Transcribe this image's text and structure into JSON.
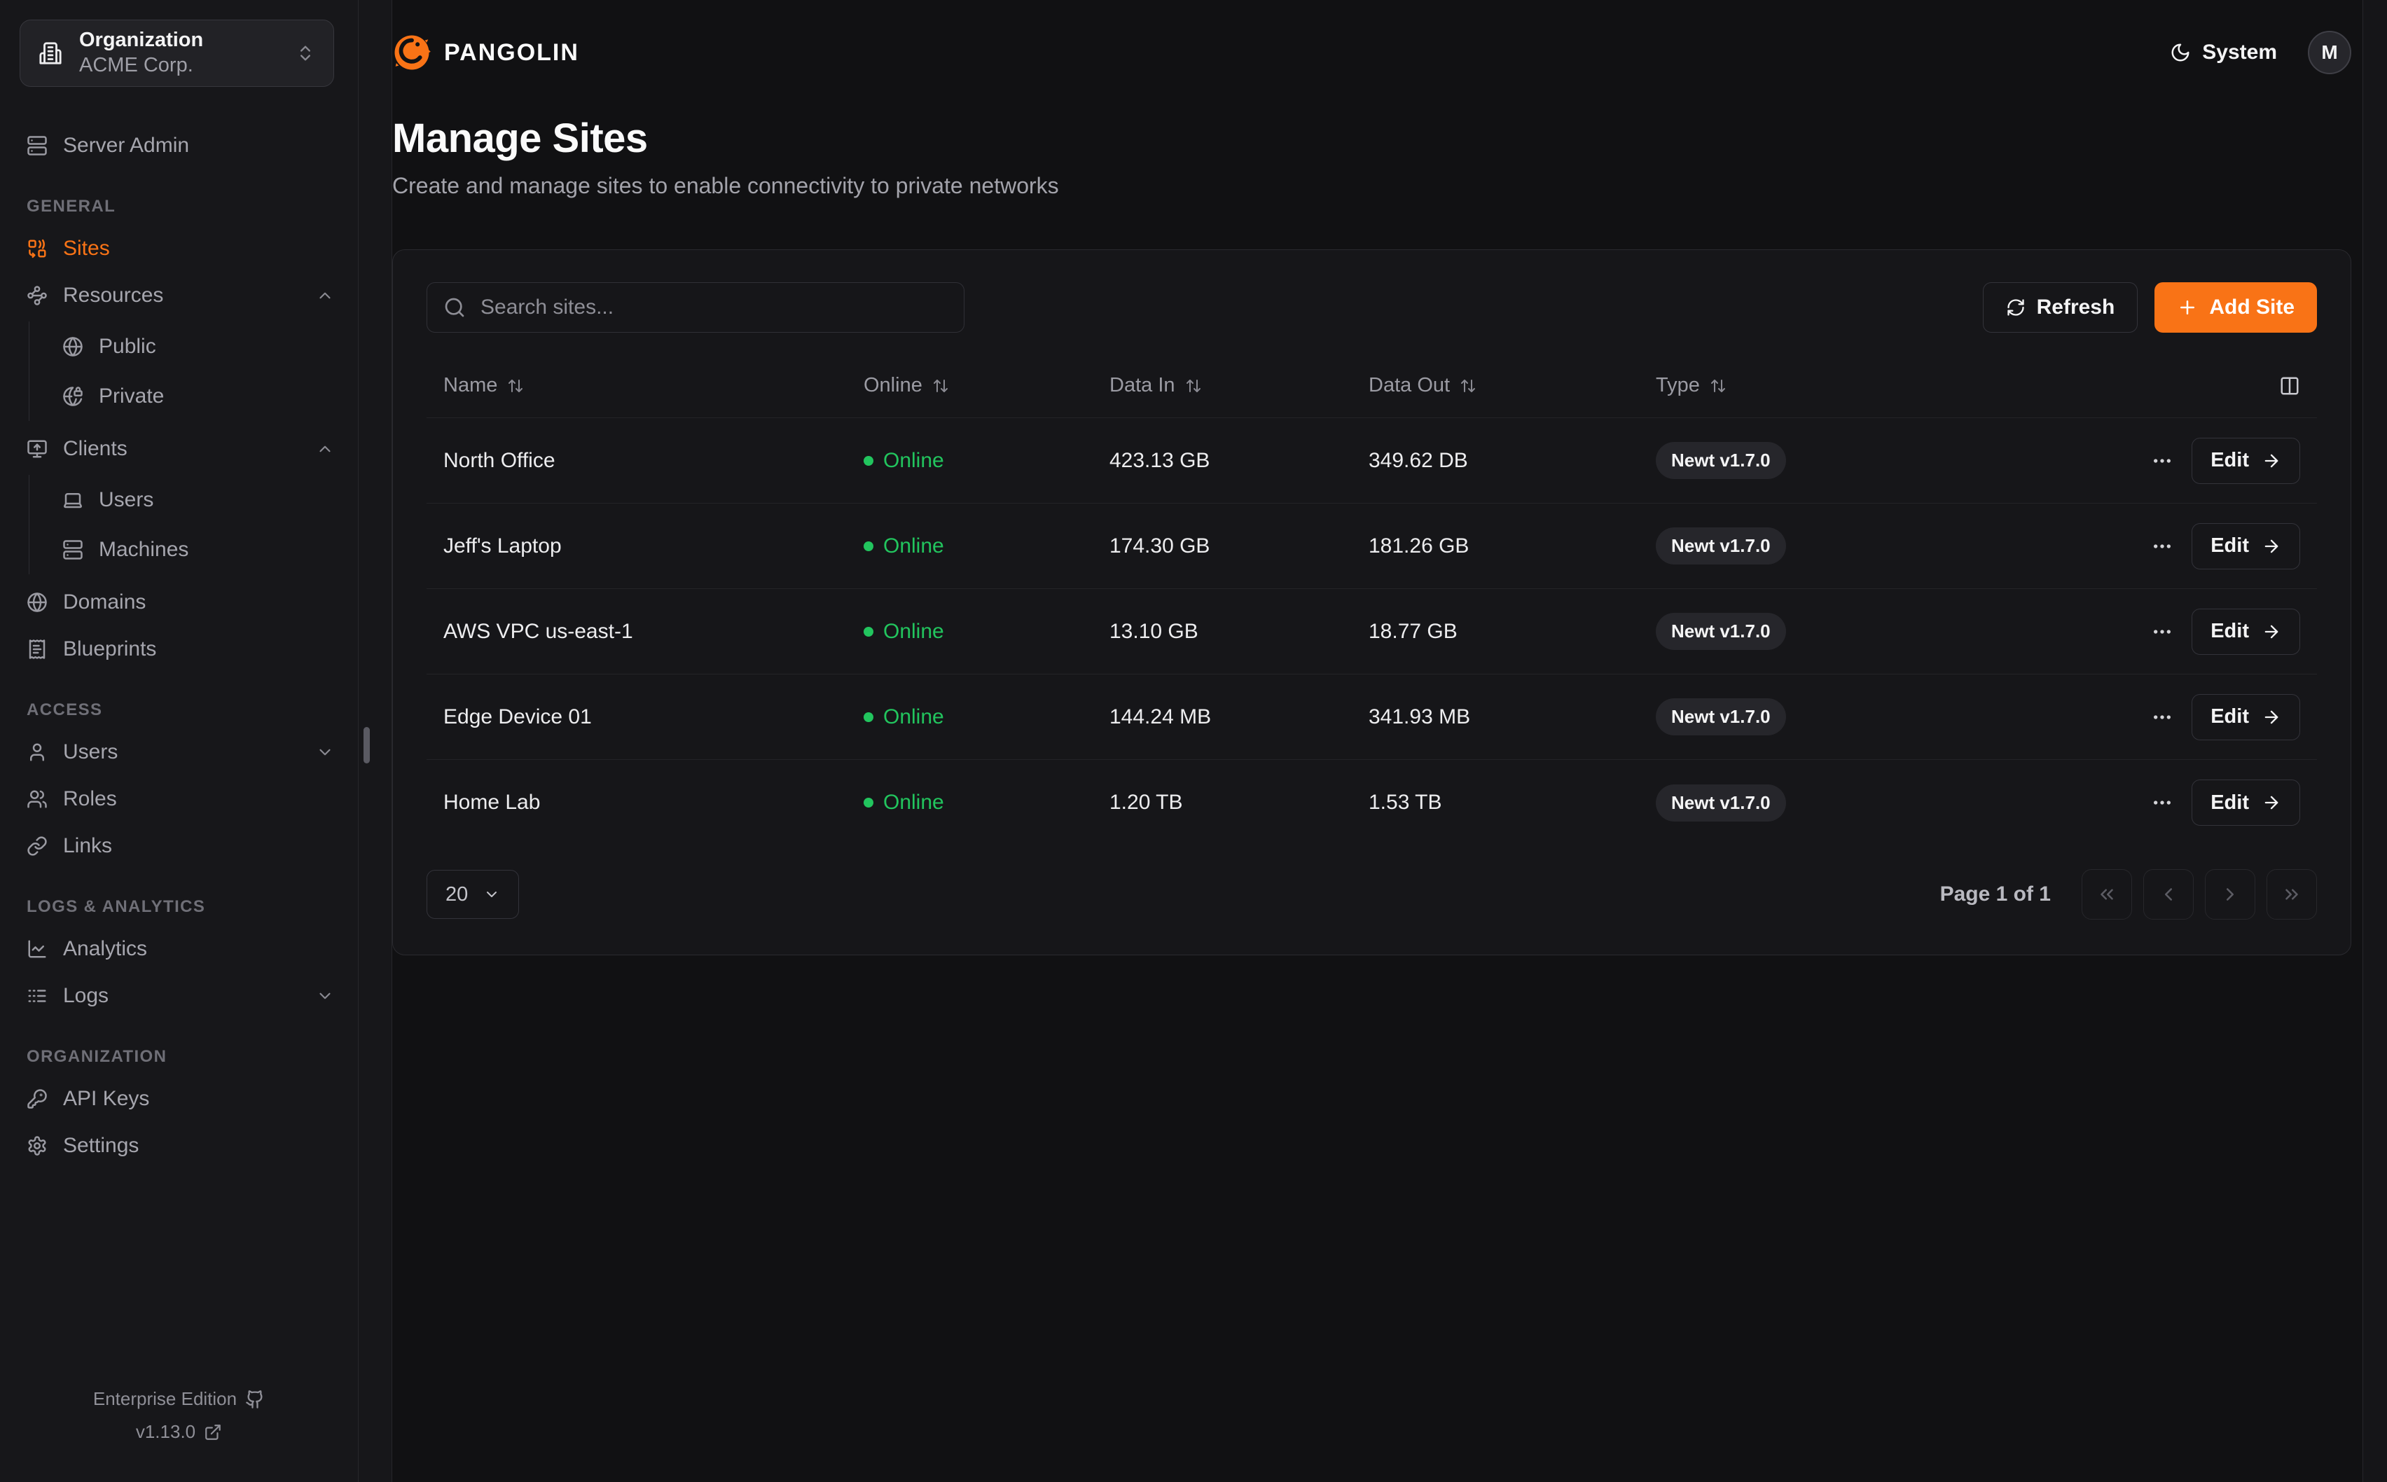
{
  "brand": {
    "name": "PANGOLIN"
  },
  "topbar": {
    "theme_label": "System",
    "avatar_initial": "M"
  },
  "org_selector": {
    "label": "Organization",
    "value": "ACME Corp."
  },
  "sidebar": {
    "server_admin_label": "Server Admin",
    "sections": [
      {
        "label": "GENERAL",
        "items": [
          {
            "label": "Sites",
            "icon": "sites-icon",
            "active": true
          },
          {
            "label": "Resources",
            "icon": "waypoints-icon",
            "chevron": "up",
            "children": [
              {
                "label": "Public",
                "icon": "globe-icon"
              },
              {
                "label": "Private",
                "icon": "globe-lock-icon"
              }
            ]
          },
          {
            "label": "Clients",
            "icon": "monitor-up-icon",
            "chevron": "up",
            "children": [
              {
                "label": "Users",
                "icon": "laptop-icon"
              },
              {
                "label": "Machines",
                "icon": "server-icon"
              }
            ]
          },
          {
            "label": "Domains",
            "icon": "globe-icon"
          },
          {
            "label": "Blueprints",
            "icon": "receipt-icon"
          }
        ]
      },
      {
        "label": "ACCESS",
        "items": [
          {
            "label": "Users",
            "icon": "user-icon",
            "chevron": "down"
          },
          {
            "label": "Roles",
            "icon": "users-icon"
          },
          {
            "label": "Links",
            "icon": "link-icon"
          }
        ]
      },
      {
        "label": "LOGS & ANALYTICS",
        "items": [
          {
            "label": "Analytics",
            "icon": "chart-line-icon"
          },
          {
            "label": "Logs",
            "icon": "logs-icon",
            "chevron": "down"
          }
        ]
      },
      {
        "label": "ORGANIZATION",
        "items": [
          {
            "label": "API Keys",
            "icon": "key-icon"
          },
          {
            "label": "Settings",
            "icon": "gear-icon"
          }
        ]
      }
    ],
    "footer": {
      "edition": "Enterprise Edition",
      "version": "v1.13.0"
    }
  },
  "page": {
    "title": "Manage Sites",
    "subtitle": "Create and manage sites to enable connectivity to private networks"
  },
  "toolbar": {
    "search_placeholder": "Search sites...",
    "refresh_label": "Refresh",
    "add_site_label": "Add Site"
  },
  "table": {
    "columns": [
      {
        "label": "Name"
      },
      {
        "label": "Online"
      },
      {
        "label": "Data In"
      },
      {
        "label": "Data Out"
      },
      {
        "label": "Type"
      }
    ],
    "edit_label": "Edit",
    "rows": [
      {
        "name": "North Office",
        "status": "Online",
        "data_in": "423.13 GB",
        "data_out": "349.62 DB",
        "type": "Newt v1.7.0"
      },
      {
        "name": "Jeff's Laptop",
        "status": "Online",
        "data_in": "174.30 GB",
        "data_out": "181.26 GB",
        "type": "Newt v1.7.0"
      },
      {
        "name": "AWS VPC us-east-1",
        "status": "Online",
        "data_in": "13.10 GB",
        "data_out": "18.77 GB",
        "type": "Newt v1.7.0"
      },
      {
        "name": "Edge Device 01",
        "status": "Online",
        "data_in": "144.24 MB",
        "data_out": "341.93 MB",
        "type": "Newt v1.7.0"
      },
      {
        "name": "Home Lab",
        "status": "Online",
        "data_in": "1.20 TB",
        "data_out": "1.53 TB",
        "type": "Newt v1.7.0"
      }
    ]
  },
  "pagination": {
    "page_size": "20",
    "page_label": "Page 1 of 1"
  },
  "colors": {
    "accent": "#F97316",
    "online_green": "#22C55E",
    "brand_orange": "#F97316"
  }
}
